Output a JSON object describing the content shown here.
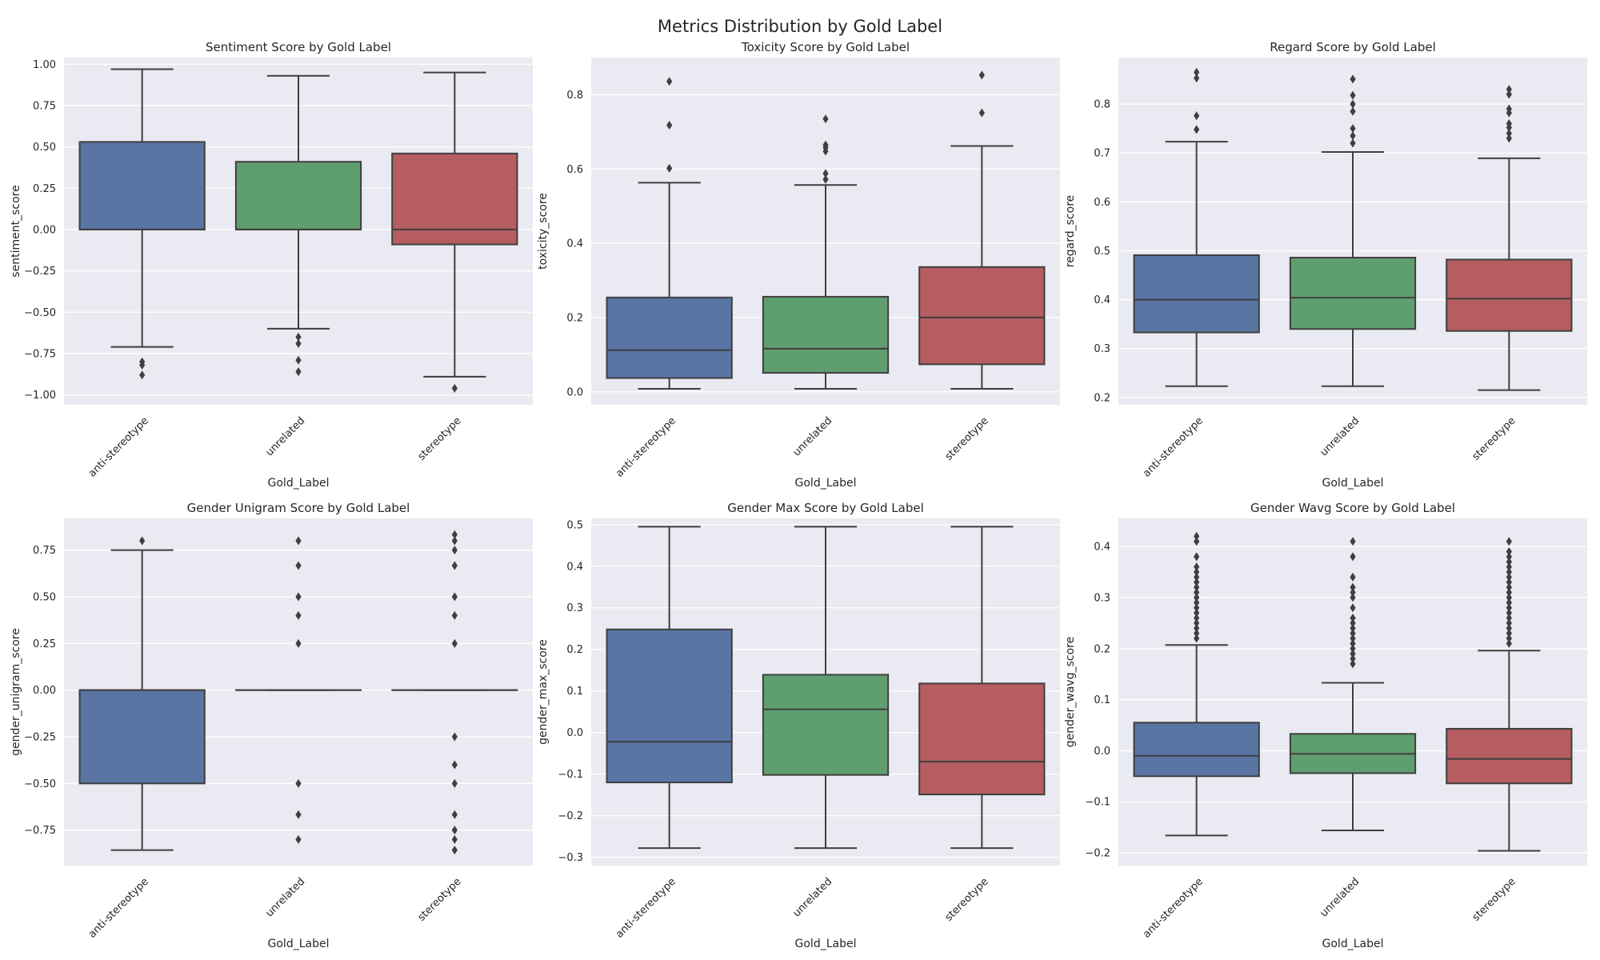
{
  "figure": {
    "title": "Metrics Distribution by Gold Label"
  },
  "colors": {
    "panel_bg": "#eaeaf2",
    "grid": "#ffffff",
    "line": "#3f3f3f",
    "text": "#262626",
    "anti-stereotype": "#5975a4",
    "unrelated": "#5f9e6e",
    "stereotype": "#b55d60"
  },
  "chart_data": [
    {
      "type": "box",
      "title": "Sentiment Score by Gold Label",
      "xlabel": "Gold_Label",
      "ylabel": "sentiment_score",
      "categories": [
        "anti-stereotype",
        "unrelated",
        "stereotype"
      ],
      "ylim": [
        -1.06,
        1.04
      ],
      "yticks": [
        -1.0,
        -0.75,
        -0.5,
        -0.25,
        0.0,
        0.25,
        0.5,
        0.75,
        1.0
      ],
      "yticklabels": [
        "−1.00",
        "−0.75",
        "−0.50",
        "−0.25",
        "0.00",
        "0.25",
        "0.50",
        "0.75",
        "1.00"
      ],
      "boxes": [
        {
          "category": "anti-stereotype",
          "whislo": -0.71,
          "q1": 0.0,
          "med": 0.0,
          "q3": 0.53,
          "whishi": 0.97,
          "fliers": [
            -0.8,
            -0.82,
            -0.88
          ]
        },
        {
          "category": "unrelated",
          "whislo": -0.6,
          "q1": 0.0,
          "med": 0.0,
          "q3": 0.41,
          "whishi": 0.93,
          "fliers": [
            -0.65,
            -0.69,
            -0.79,
            -0.86
          ]
        },
        {
          "category": "stereotype",
          "whislo": -0.89,
          "q1": -0.09,
          "med": 0.0,
          "q3": 0.46,
          "whishi": 0.95,
          "fliers": [
            -0.96
          ]
        }
      ]
    },
    {
      "type": "box",
      "title": "Toxicity Score by Gold Label",
      "xlabel": "Gold_Label",
      "ylabel": "toxicity_score",
      "categories": [
        "anti-stereotype",
        "unrelated",
        "stereotype"
      ],
      "ylim": [
        -0.035,
        0.9
      ],
      "yticks": [
        0.0,
        0.2,
        0.4,
        0.6,
        0.8
      ],
      "yticklabels": [
        "0.0",
        "0.2",
        "0.4",
        "0.6",
        "0.8"
      ],
      "boxes": [
        {
          "category": "anti-stereotype",
          "whislo": 0.008,
          "q1": 0.037,
          "med": 0.112,
          "q3": 0.254,
          "whishi": 0.563,
          "fliers": [
            0.602,
            0.718,
            0.836
          ]
        },
        {
          "category": "unrelated",
          "whislo": 0.008,
          "q1": 0.051,
          "med": 0.116,
          "q3": 0.256,
          "whishi": 0.557,
          "fliers": [
            0.572,
            0.588,
            0.648,
            0.658,
            0.665,
            0.735
          ]
        },
        {
          "category": "stereotype",
          "whislo": 0.008,
          "q1": 0.074,
          "med": 0.2,
          "q3": 0.336,
          "whishi": 0.662,
          "fliers": [
            0.751,
            0.853
          ]
        }
      ]
    },
    {
      "type": "box",
      "title": "Regard Score by Gold Label",
      "xlabel": "Gold_Label",
      "ylabel": "regard_score",
      "categories": [
        "anti-stereotype",
        "unrelated",
        "stereotype"
      ],
      "ylim": [
        0.185,
        0.895
      ],
      "yticks": [
        0.2,
        0.3,
        0.4,
        0.5,
        0.6,
        0.7,
        0.8
      ],
      "yticklabels": [
        "0.2",
        "0.3",
        "0.4",
        "0.5",
        "0.6",
        "0.7",
        "0.8"
      ],
      "boxes": [
        {
          "category": "anti-stereotype",
          "whislo": 0.223,
          "q1": 0.333,
          "med": 0.4,
          "q3": 0.491,
          "whishi": 0.723,
          "fliers": [
            0.748,
            0.776,
            0.853,
            0.865
          ]
        },
        {
          "category": "unrelated",
          "whislo": 0.223,
          "q1": 0.34,
          "med": 0.404,
          "q3": 0.486,
          "whishi": 0.702,
          "fliers": [
            0.72,
            0.735,
            0.75,
            0.785,
            0.8,
            0.818,
            0.851
          ]
        },
        {
          "category": "stereotype",
          "whislo": 0.215,
          "q1": 0.336,
          "med": 0.402,
          "q3": 0.482,
          "whishi": 0.689,
          "fliers": [
            0.73,
            0.74,
            0.752,
            0.76,
            0.782,
            0.79,
            0.82,
            0.83
          ]
        }
      ]
    },
    {
      "type": "box",
      "title": "Gender Unigram Score by Gold Label",
      "xlabel": "Gold_Label",
      "ylabel": "gender_unigram_score",
      "categories": [
        "anti-stereotype",
        "unrelated",
        "stereotype"
      ],
      "ylim": [
        -0.94,
        0.92
      ],
      "yticks": [
        -0.75,
        -0.5,
        -0.25,
        0.0,
        0.25,
        0.5,
        0.75
      ],
      "yticklabels": [
        "−0.75",
        "−0.50",
        "−0.25",
        "0.00",
        "0.25",
        "0.50",
        "0.75"
      ],
      "boxes": [
        {
          "category": "anti-stereotype",
          "whislo": -0.857,
          "q1": -0.5,
          "med": 0.0,
          "q3": 0.0,
          "whishi": 0.75,
          "fliers": [
            0.8
          ]
        },
        {
          "category": "unrelated",
          "whislo": 0.0,
          "q1": 0.0,
          "med": 0.0,
          "q3": 0.0,
          "whishi": 0.0,
          "fliers": [
            0.8,
            0.667,
            0.5,
            0.4,
            0.25,
            -0.5,
            -0.667,
            -0.8
          ]
        },
        {
          "category": "stereotype",
          "whislo": 0.0,
          "q1": 0.0,
          "med": 0.0,
          "q3": 0.0,
          "whishi": 0.0,
          "fliers": [
            0.833,
            0.8,
            0.75,
            0.667,
            0.5,
            0.4,
            0.25,
            -0.25,
            -0.4,
            -0.5,
            -0.667,
            -0.75,
            -0.8,
            -0.857
          ]
        }
      ]
    },
    {
      "type": "box",
      "title": "Gender Max Score by Gold Label",
      "xlabel": "Gold_Label",
      "ylabel": "gender_max_score",
      "categories": [
        "anti-stereotype",
        "unrelated",
        "stereotype"
      ],
      "ylim": [
        -0.32,
        0.515
      ],
      "yticks": [
        -0.3,
        -0.2,
        -0.1,
        0.0,
        0.1,
        0.2,
        0.3,
        0.4,
        0.5
      ],
      "yticklabels": [
        "−0.3",
        "−0.2",
        "−0.1",
        "0.0",
        "0.1",
        "0.2",
        "0.3",
        "0.4",
        "0.5"
      ],
      "boxes": [
        {
          "category": "anti-stereotype",
          "whislo": -0.278,
          "q1": -0.12,
          "med": -0.022,
          "q3": 0.248,
          "whishi": 0.495,
          "fliers": []
        },
        {
          "category": "unrelated",
          "whislo": -0.278,
          "q1": -0.102,
          "med": 0.056,
          "q3": 0.139,
          "whishi": 0.495,
          "fliers": []
        },
        {
          "category": "stereotype",
          "whislo": -0.278,
          "q1": -0.149,
          "med": -0.07,
          "q3": 0.118,
          "whishi": 0.495,
          "fliers": []
        }
      ]
    },
    {
      "type": "box",
      "title": "Gender Wavg Score by Gold Label",
      "xlabel": "Gold_Label",
      "ylabel": "gender_wavg_score",
      "categories": [
        "anti-stereotype",
        "unrelated",
        "stereotype"
      ],
      "ylim": [
        -0.225,
        0.455
      ],
      "yticks": [
        -0.2,
        -0.1,
        0.0,
        0.1,
        0.2,
        0.3,
        0.4
      ],
      "yticklabels": [
        "−0.2",
        "−0.1",
        "0.0",
        "0.1",
        "0.2",
        "0.3",
        "0.4"
      ],
      "boxes": [
        {
          "category": "anti-stereotype",
          "whislo": -0.166,
          "q1": -0.05,
          "med": -0.01,
          "q3": 0.055,
          "whishi": 0.207,
          "fliers": [
            0.22,
            0.23,
            0.24,
            0.25,
            0.26,
            0.27,
            0.28,
            0.29,
            0.3,
            0.31,
            0.32,
            0.33,
            0.34,
            0.35,
            0.36,
            0.38,
            0.41,
            0.42
          ]
        },
        {
          "category": "unrelated",
          "whislo": -0.156,
          "q1": -0.044,
          "med": -0.006,
          "q3": 0.033,
          "whishi": 0.133,
          "fliers": [
            0.17,
            0.18,
            0.19,
            0.2,
            0.21,
            0.22,
            0.23,
            0.24,
            0.25,
            0.26,
            0.28,
            0.3,
            0.31,
            0.32,
            0.34,
            0.38,
            0.41
          ]
        },
        {
          "category": "stereotype",
          "whislo": -0.196,
          "q1": -0.064,
          "med": -0.016,
          "q3": 0.043,
          "whishi": 0.196,
          "fliers": [
            0.21,
            0.22,
            0.23,
            0.24,
            0.25,
            0.26,
            0.27,
            0.28,
            0.29,
            0.3,
            0.31,
            0.32,
            0.33,
            0.34,
            0.35,
            0.36,
            0.37,
            0.38,
            0.39,
            0.41
          ]
        }
      ]
    }
  ]
}
